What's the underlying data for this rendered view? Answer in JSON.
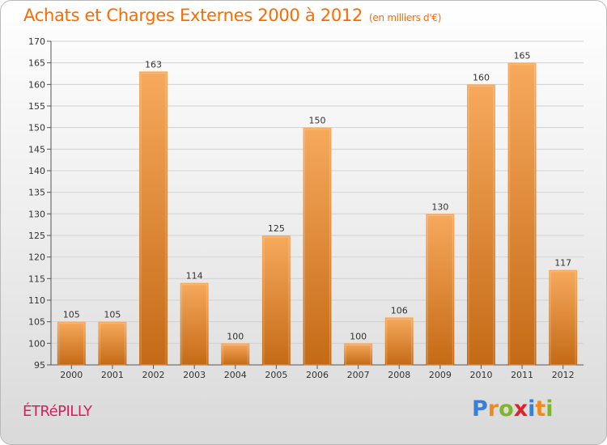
{
  "header": {
    "title": "Achats et Charges Externes 2000 à 2012",
    "subtitle": "(en milliers d'€)"
  },
  "footer": {
    "commune": "ÉTRéPILLY",
    "logo": {
      "letters": [
        "P",
        "r",
        "o",
        "x",
        "i",
        "t",
        "i"
      ],
      "colors": [
        "#3a7fd6",
        "#f08a1c",
        "#7fb52a",
        "#d8262c",
        "#3a7fd6",
        "#f08a1c",
        "#7fb52a"
      ]
    }
  },
  "colors": {
    "bar_light": "#f7a95c",
    "bar_dark": "#c46a16",
    "text": "#333333",
    "title": "#ff6a00"
  },
  "chart_data": {
    "type": "bar",
    "title": "Achats et Charges Externes 2000 à 2012",
    "categories": [
      "2000",
      "2001",
      "2002",
      "2003",
      "2004",
      "2005",
      "2006",
      "2007",
      "2008",
      "2009",
      "2010",
      "2011",
      "2012"
    ],
    "values": [
      105,
      105,
      163,
      114,
      100,
      125,
      150,
      100,
      106,
      130,
      160,
      165,
      117
    ],
    "xlabel": "",
    "ylabel": "",
    "ylim": [
      95,
      170
    ],
    "yticks": [
      95,
      100,
      105,
      110,
      115,
      120,
      125,
      130,
      135,
      140,
      145,
      150,
      155,
      160,
      165,
      170
    ],
    "grid": true,
    "legend": "none"
  }
}
